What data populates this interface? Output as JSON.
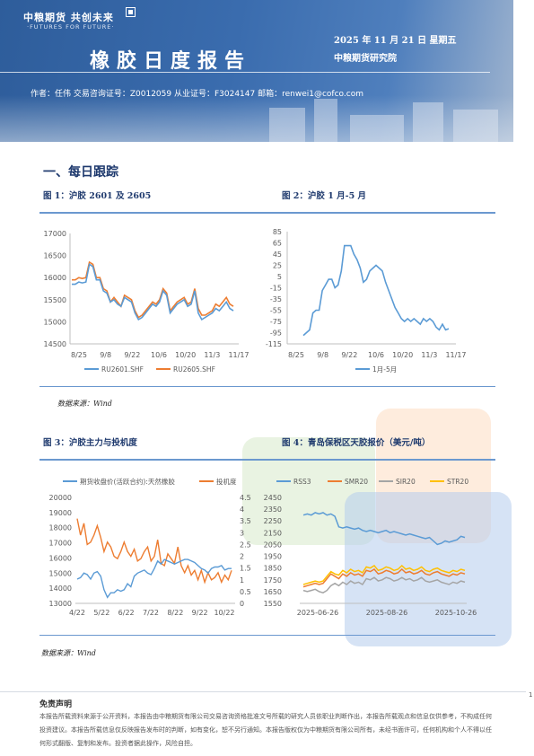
{
  "header": {
    "logo_text": "中粮期货  共创未来",
    "logo_sub": "·FUTURES FOR FUTURE·",
    "title": "橡胶日度报告",
    "date": "2025 年 11 月 21 日  星期五",
    "institute": "中粮期货研究院",
    "author_line": "作者：任伟    交易咨询证号：Z0012059    从业证号：F3024147    邮箱：renwei1@cofco.com"
  },
  "section": {
    "title": "一、每日跟踪"
  },
  "figures": [
    {
      "label": "图 1：沪胶 2601 及 2605"
    },
    {
      "label": "图 2：沪胶 1 月-5 月"
    },
    {
      "label": "图 3：沪胶主力与投机度"
    },
    {
      "label": "图 4：青岛保税区天胶报价（美元/吨）"
    }
  ],
  "sources": {
    "top": "数据来源：Wind",
    "bottom": "数据来源：Wind"
  },
  "colors": {
    "blue": "#5b9bd5",
    "orange": "#ed7d31",
    "gray": "#a5a5a5",
    "yellow": "#ffc000",
    "title_blue": "#1f3a6e"
  },
  "chart_data": [
    {
      "type": "line",
      "x_ticks": [
        "8/25",
        "9/8",
        "9/22",
        "10/6",
        "10/20",
        "11/3",
        "11/17"
      ],
      "ylim": [
        14500,
        17000
      ],
      "y_ticks": [
        14500,
        15000,
        15500,
        16000,
        16500,
        17000
      ],
      "series": [
        {
          "name": "RU2601.SHF",
          "color": "#5b9bd5",
          "values": [
            15850,
            15850,
            15900,
            15880,
            15900,
            16300,
            16250,
            15950,
            15950,
            15700,
            15650,
            15450,
            15500,
            15400,
            15350,
            15550,
            15500,
            15450,
            15200,
            15050,
            15100,
            15200,
            15300,
            15400,
            15350,
            15450,
            15700,
            15600,
            15200,
            15300,
            15400,
            15450,
            15500,
            15350,
            15400,
            15700,
            15200,
            15050,
            15100,
            15150,
            15200,
            15300,
            15250,
            15350,
            15450,
            15300,
            15250
          ]
        },
        {
          "name": "RU2605.SHF",
          "color": "#ed7d31",
          "values": [
            15950,
            15950,
            16000,
            15980,
            16000,
            16350,
            16300,
            16000,
            16000,
            15750,
            15700,
            15450,
            15550,
            15450,
            15350,
            15600,
            15550,
            15500,
            15250,
            15100,
            15150,
            15250,
            15350,
            15450,
            15400,
            15500,
            15750,
            15650,
            15250,
            15350,
            15450,
            15500,
            15550,
            15400,
            15450,
            15750,
            15300,
            15150,
            15150,
            15200,
            15250,
            15400,
            15350,
            15450,
            15550,
            15400,
            15350
          ]
        }
      ]
    },
    {
      "type": "line",
      "x_ticks": [
        "8/25",
        "9/8",
        "9/22",
        "10/6",
        "10/20",
        "11/3",
        "11/17"
      ],
      "ylim": [
        -115,
        85
      ],
      "y_ticks": [
        -115,
        -95,
        -75,
        -55,
        -35,
        -15,
        5,
        25,
        45,
        65,
        85
      ],
      "series": [
        {
          "name": "1月-5月",
          "color": "#5b9bd5",
          "values": [
            -100,
            -95,
            -90,
            -60,
            -55,
            -55,
            -20,
            -10,
            0,
            0,
            -15,
            -10,
            15,
            60,
            60,
            60,
            45,
            35,
            20,
            -5,
            0,
            15,
            20,
            25,
            20,
            15,
            -5,
            -20,
            -35,
            -50,
            -60,
            -70,
            -75,
            -70,
            -75,
            -70,
            -75,
            -80,
            -70,
            -75,
            -70,
            -75,
            -85,
            -90,
            -80,
            -90,
            -88
          ]
        }
      ]
    },
    {
      "type": "line",
      "x_ticks": [
        "4/22",
        "5/22",
        "6/22",
        "7/22",
        "8/22",
        "9/22",
        "10/22"
      ],
      "ylim_left": [
        13000,
        20000
      ],
      "y_ticks_left": [
        13000,
        14000,
        15000,
        16000,
        17000,
        18000,
        19000,
        20000
      ],
      "ylim_right": [
        0,
        4.5
      ],
      "y_ticks_right": [
        0,
        0.5,
        1,
        1.5,
        2,
        2.5,
        3,
        3.5,
        4,
        4.5
      ],
      "series": [
        {
          "name": "期货收盘价(活跃合约):天然橡胶",
          "color": "#5b9bd5",
          "axis": "left",
          "values": [
            14600,
            14700,
            15000,
            14900,
            14600,
            15000,
            15100,
            14800,
            13900,
            13400,
            13700,
            13700,
            13900,
            13800,
            13900,
            14300,
            14100,
            14800,
            15000,
            15100,
            15200,
            15000,
            14900,
            15300,
            15800,
            15600,
            15900,
            15800,
            15700,
            15600,
            15700,
            15800,
            15900,
            15900,
            15800,
            15700,
            15500,
            15300,
            15200,
            15000,
            15300,
            15400,
            15400,
            15500,
            15200,
            15300,
            15300
          ]
        },
        {
          "name": "投机度",
          "color": "#ed7d31",
          "axis": "right",
          "values": [
            3.6,
            2.9,
            3.4,
            2.5,
            2.6,
            2.9,
            3.3,
            2.8,
            2.2,
            2.6,
            2.4,
            2.0,
            1.9,
            2.2,
            2.6,
            2.2,
            2.0,
            2.3,
            1.8,
            1.9,
            2.2,
            2.4,
            1.8,
            2.0,
            2.7,
            1.7,
            1.6,
            2.1,
            1.9,
            1.7,
            2.4,
            1.6,
            1.3,
            1.6,
            1.2,
            1.4,
            1.0,
            1.4,
            0.9,
            1.3,
            1.0,
            1.1,
            1.3,
            0.9,
            1.2,
            1.0,
            1.4
          ]
        }
      ]
    },
    {
      "type": "line",
      "x_ticks": [
        "2025-06-26",
        "2025-08-26",
        "2025-10-26"
      ],
      "ylim": [
        1550,
        2450
      ],
      "y_ticks": [
        1550,
        1650,
        1750,
        1850,
        1950,
        2050,
        2150,
        2250,
        2350,
        2450
      ],
      "series": [
        {
          "name": "RSS3",
          "color": "#5b9bd5",
          "values": [
            2300,
            2310,
            2300,
            2320,
            2310,
            2320,
            2300,
            2310,
            2290,
            2200,
            2190,
            2200,
            2190,
            2180,
            2190,
            2170,
            2160,
            2170,
            2160,
            2150,
            2160,
            2170,
            2150,
            2160,
            2150,
            2140,
            2130,
            2140,
            2130,
            2120,
            2110,
            2100,
            2110,
            2080,
            2050,
            2060,
            2080,
            2070,
            2080,
            2090,
            2120,
            2110
          ]
        },
        {
          "name": "SMR20",
          "color": "#ed7d31",
          "values": [
            1690,
            1700,
            1710,
            1720,
            1710,
            1720,
            1760,
            1800,
            1780,
            1760,
            1800,
            1780,
            1810,
            1790,
            1800,
            1780,
            1830,
            1820,
            1840,
            1800,
            1810,
            1830,
            1820,
            1800,
            1810,
            1840,
            1810,
            1820,
            1800,
            1810,
            1830,
            1800,
            1790,
            1810,
            1820,
            1800,
            1790,
            1780,
            1800,
            1790,
            1810,
            1800
          ]
        },
        {
          "name": "SIR20",
          "color": "#a5a5a5",
          "values": [
            1660,
            1650,
            1660,
            1670,
            1650,
            1640,
            1660,
            1700,
            1720,
            1700,
            1730,
            1710,
            1740,
            1720,
            1730,
            1710,
            1760,
            1750,
            1770,
            1740,
            1750,
            1770,
            1760,
            1740,
            1750,
            1770,
            1750,
            1760,
            1740,
            1750,
            1770,
            1740,
            1730,
            1740,
            1750,
            1730,
            1720,
            1710,
            1730,
            1720,
            1740,
            1730
          ]
        },
        {
          "name": "STR20",
          "color": "#ffc000",
          "values": [
            1710,
            1720,
            1730,
            1740,
            1730,
            1740,
            1780,
            1820,
            1800,
            1790,
            1830,
            1810,
            1840,
            1820,
            1830,
            1810,
            1860,
            1850,
            1870,
            1830,
            1840,
            1860,
            1850,
            1830,
            1840,
            1870,
            1840,
            1850,
            1830,
            1840,
            1860,
            1830,
            1820,
            1840,
            1850,
            1830,
            1820,
            1810,
            1830,
            1820,
            1840,
            1830
          ]
        }
      ]
    }
  ],
  "disclaimer": {
    "title": "免责声明",
    "text": "本报告所载资料来源于公开资料，本报告由中粮期货有限公司交易咨询资格批准文号所载的研究人员依职业判断作出，本报告所载观点和信息仅供参考，不构成任何投资建议。本报告所载信息仅反映报告发布时的判断，如有变化，恕不另行通知。本报告版权仅为中粮期货有限公司所有，未经书面许可，任何机构和个人不得以任何形式翻版、复制和发布。投资者据此操作，风险自担。"
  },
  "page_number": "1"
}
